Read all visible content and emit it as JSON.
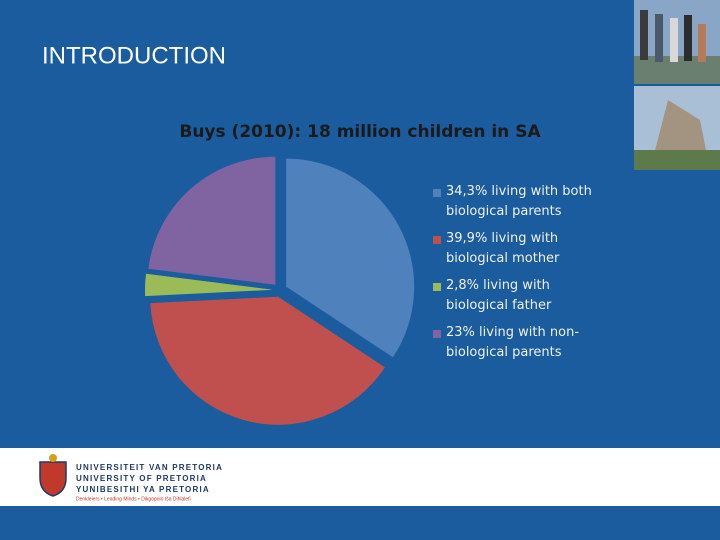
{
  "slide_title": "INTRODUCTION",
  "chart_data": {
    "type": "pie",
    "title": "Buys (2010): 18 million children in SA",
    "categories": [
      "34,3% living with both biological parents",
      "39,9% living with biological mother",
      "2,8% living with biological father",
      "23% living with non-biological parents"
    ],
    "values": [
      34.3,
      39.9,
      2.8,
      23
    ],
    "colors": [
      "#4f81bd",
      "#c0504d",
      "#9bbb59",
      "#8064a2"
    ],
    "legend": "right"
  },
  "footer": {
    "lines": [
      "UNIVERSITEIT VAN PRETORIA",
      "UNIVERSITY OF PRETORIA",
      "YUNIBESITHI YA PRETORIA"
    ],
    "motto": "Denkleiers • Leading Minds • Dikgopolo tša Dihlalefi"
  }
}
